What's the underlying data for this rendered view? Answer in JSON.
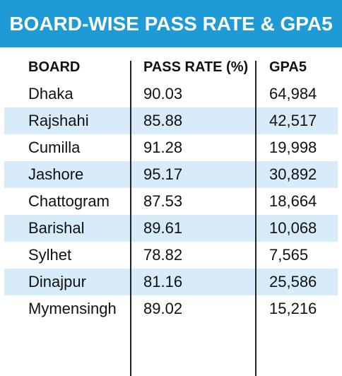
{
  "title": "BOARD-WISE PASS RATE & GPA5",
  "colors": {
    "header": "#1e9bd7",
    "row_shade": "#d7ecf8"
  },
  "chart_data": {
    "type": "table",
    "title": "BOARD-WISE PASS RATE & GPA5",
    "columns": [
      "BOARD",
      "PASS RATE (%)",
      "GPA5"
    ],
    "rows": [
      [
        "Dhaka",
        "90.03",
        "64,984"
      ],
      [
        "Rajshahi",
        "85.88",
        "42,517"
      ],
      [
        "Cumilla",
        "91.28",
        "19,998"
      ],
      [
        "Jashore",
        "95.17",
        "30,892"
      ],
      [
        "Chattogram",
        "87.53",
        "18,664"
      ],
      [
        "Barishal",
        "89.61",
        "10,068"
      ],
      [
        "Sylhet",
        "78.82",
        "7,565"
      ],
      [
        "Dinajpur",
        "81.16",
        "25,586"
      ],
      [
        "Mymensingh",
        "89.02",
        "15,216"
      ]
    ]
  }
}
